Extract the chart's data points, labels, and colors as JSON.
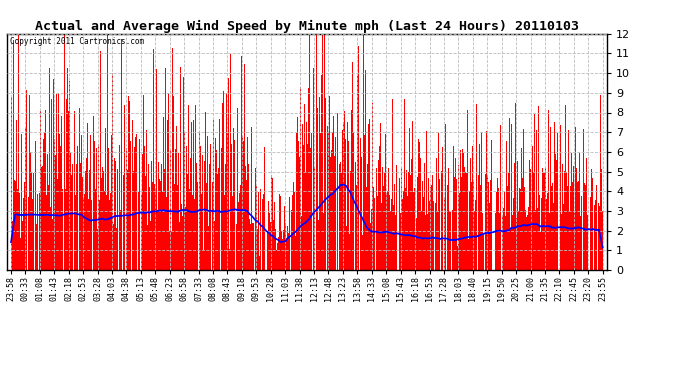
{
  "title": "Actual and Average Wind Speed by Minute mph (Last 24 Hours) 20110103",
  "copyright_text": "Copyright 2011 Cartronics.com",
  "ylim": [
    0.0,
    12.0
  ],
  "yticks": [
    0.0,
    1.0,
    2.0,
    3.0,
    4.0,
    5.0,
    6.0,
    7.0,
    8.0,
    9.0,
    10.0,
    11.0,
    12.0
  ],
  "bar_color": "#FF0000",
  "line_color": "#0000FF",
  "background_color": "#FFFFFF",
  "grid_color": "#BBBBBB",
  "n_minutes": 1440,
  "seed": 42,
  "tick_labels": [
    "23:58",
    "00:33",
    "01:08",
    "01:43",
    "02:18",
    "02:53",
    "03:28",
    "04:03",
    "04:38",
    "05:13",
    "05:48",
    "06:23",
    "06:58",
    "07:33",
    "08:08",
    "08:43",
    "09:18",
    "09:53",
    "10:28",
    "11:03",
    "11:38",
    "12:13",
    "12:48",
    "13:23",
    "13:58",
    "14:33",
    "15:08",
    "15:43",
    "16:18",
    "16:53",
    "17:28",
    "18:03",
    "18:40",
    "19:15",
    "19:50",
    "20:25",
    "21:00",
    "21:35",
    "22:10",
    "22:45",
    "23:20",
    "23:55"
  ]
}
